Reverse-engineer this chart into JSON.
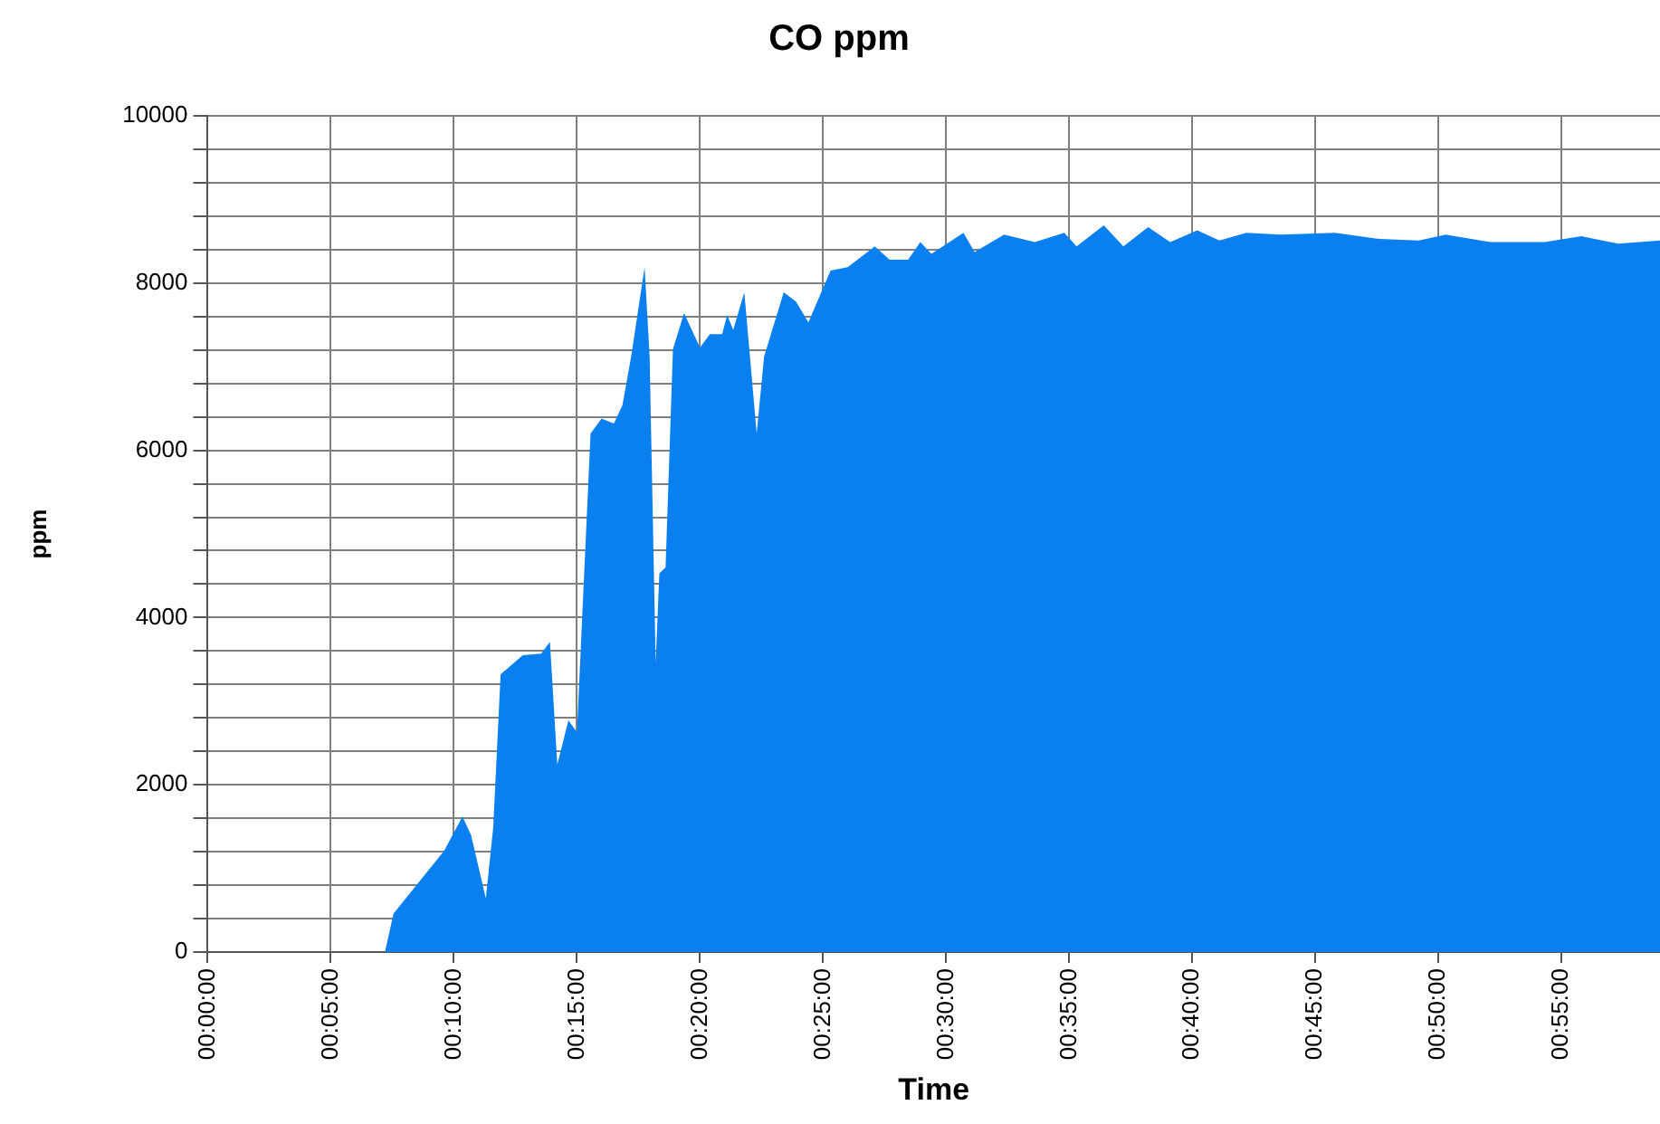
{
  "chart_data": {
    "type": "area",
    "title": "CO ppm",
    "xlabel": "Time",
    "ylabel": "ppm",
    "x": [
      0,
      0.12,
      0.1258,
      0.16,
      0.1725,
      0.1783,
      0.1883,
      0.1933,
      0.1983,
      0.2133,
      0.2258,
      0.2317,
      0.2367,
      0.2442,
      0.25,
      0.2592,
      0.2667,
      0.275,
      0.2808,
      0.2867,
      0.2958,
      0.2992,
      0.3033,
      0.3058,
      0.31,
      0.315,
      0.3225,
      0.3333,
      0.34,
      0.3483,
      0.3517,
      0.3558,
      0.3633,
      0.3717,
      0.3767,
      0.39,
      0.3983,
      0.4067,
      0.4217,
      0.4333,
      0.4517,
      0.4617,
      0.4742,
      0.4825,
      0.49,
      0.5117,
      0.5192,
      0.5392,
      0.56,
      0.58,
      0.5883,
      0.6067,
      0.62,
      0.6367,
      0.6517,
      0.67,
      0.685,
      0.7033,
      0.7267,
      0.7633,
      0.7917,
      0.82,
      0.8383,
      0.8683,
      0.905,
      0.93,
      0.955,
      0.9833
    ],
    "series": [
      {
        "color": "#0a80f0",
        "values": [
          0,
          0,
          460,
          1210,
          1620,
          1400,
          640,
          1490,
          3320,
          3550,
          3570,
          3710,
          2240,
          2770,
          2630,
          6200,
          6380,
          6320,
          6540,
          7120,
          8190,
          7120,
          3460,
          4530,
          4600,
          7210,
          7640,
          7230,
          7390,
          7390,
          7620,
          7440,
          7890,
          6200,
          7120,
          7890,
          7780,
          7530,
          8150,
          8190,
          8440,
          8280,
          8280,
          8490,
          8350,
          8600,
          8370,
          8580,
          8490,
          8600,
          8440,
          8690,
          8440,
          8670,
          8490,
          8630,
          8510,
          8600,
          8580,
          8600,
          8530,
          8510,
          8580,
          8490,
          8490,
          8560,
          8470,
          8510
        ]
      }
    ],
    "xlim": [
      0,
      0.9833
    ],
    "xticks": [
      {
        "value": 0,
        "label": "00:00:00"
      },
      {
        "value": 0.08333,
        "label": "00:05:00"
      },
      {
        "value": 0.16667,
        "label": "00:10:00"
      },
      {
        "value": 0.25,
        "label": "00:15:00"
      },
      {
        "value": 0.33333,
        "label": "00:20:00"
      },
      {
        "value": 0.41667,
        "label": "00:25:00"
      },
      {
        "value": 0.5,
        "label": "00:30:00"
      },
      {
        "value": 0.58333,
        "label": "00:35:00"
      },
      {
        "value": 0.66667,
        "label": "00:40:00"
      },
      {
        "value": 0.75,
        "label": "00:45:00"
      },
      {
        "value": 0.83333,
        "label": "00:50:00"
      },
      {
        "value": 0.91667,
        "label": "00:55:00"
      }
    ],
    "ylim": [
      0,
      10000
    ],
    "yticks": [
      0,
      {
        "value": 400,
        "label": null
      },
      {
        "value": 800,
        "label": null
      },
      {
        "value": 1200,
        "label": null
      },
      {
        "value": 1600,
        "label": null
      },
      2000,
      {
        "value": 2400,
        "label": null
      },
      {
        "value": 2800,
        "label": null
      },
      {
        "value": 3200,
        "label": null
      },
      {
        "value": 3600,
        "label": null
      },
      4000,
      {
        "value": 4400,
        "label": null
      },
      {
        "value": 4800,
        "label": null
      },
      {
        "value": 5200,
        "label": null
      },
      {
        "value": 5600,
        "label": null
      },
      6000,
      {
        "value": 6400,
        "label": null
      },
      {
        "value": 6800,
        "label": null
      },
      {
        "value": 7200,
        "label": null
      },
      {
        "value": 7600,
        "label": null
      },
      8000,
      {
        "value": 8400,
        "label": null
      },
      {
        "value": 8800,
        "label": null
      },
      {
        "value": 9200,
        "label": null
      },
      {
        "value": 9600,
        "label": null
      },
      10000
    ],
    "grid": true,
    "legend": false
  }
}
